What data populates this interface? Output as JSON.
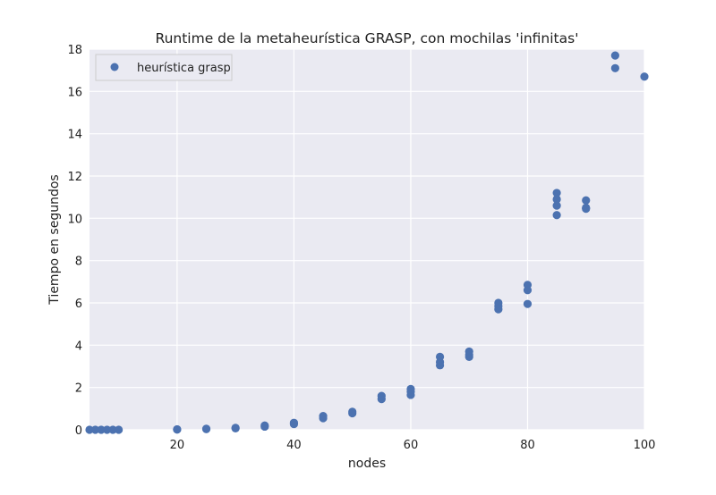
{
  "chart_data": {
    "type": "scatter",
    "title": "Runtime de la metaheurística GRASP, con mochilas 'infinitas'",
    "xlabel": "nodes",
    "ylabel": "Tiempo en segundos",
    "xlim": [
      5,
      100
    ],
    "ylim": [
      0,
      18
    ],
    "grid": true,
    "legend_position": "top-left",
    "xticks": [
      "20",
      "40",
      "60",
      "80",
      "100"
    ],
    "yticks": [
      "0",
      "2",
      "4",
      "6",
      "8",
      "10",
      "12",
      "14",
      "16",
      "18"
    ],
    "series": [
      {
        "name": "heurística grasp",
        "color": "#4c72b0",
        "points": [
          [
            5,
            0
          ],
          [
            6,
            0
          ],
          [
            7,
            0
          ],
          [
            8,
            0
          ],
          [
            9,
            0
          ],
          [
            10,
            0
          ],
          [
            20,
            0.01
          ],
          [
            20,
            0.02
          ],
          [
            25,
            0.03
          ],
          [
            25,
            0.05
          ],
          [
            30,
            0.07
          ],
          [
            30,
            0.09
          ],
          [
            35,
            0.15
          ],
          [
            35,
            0.2
          ],
          [
            40,
            0.27
          ],
          [
            40,
            0.33
          ],
          [
            45,
            0.55
          ],
          [
            45,
            0.65
          ],
          [
            50,
            0.78
          ],
          [
            50,
            0.85
          ],
          [
            55,
            1.45
          ],
          [
            55,
            1.6
          ],
          [
            60,
            1.65
          ],
          [
            60,
            1.8
          ],
          [
            60,
            1.93
          ],
          [
            65,
            3.05
          ],
          [
            65,
            3.2
          ],
          [
            65,
            3.45
          ],
          [
            70,
            3.45
          ],
          [
            70,
            3.55
          ],
          [
            70,
            3.7
          ],
          [
            75,
            5.7
          ],
          [
            75,
            5.85
          ],
          [
            75,
            6.0
          ],
          [
            80,
            5.95
          ],
          [
            80,
            6.6
          ],
          [
            80,
            6.85
          ],
          [
            85,
            10.15
          ],
          [
            85,
            10.6
          ],
          [
            85,
            10.9
          ],
          [
            85,
            11.2
          ],
          [
            90,
            10.45
          ],
          [
            90,
            10.5
          ],
          [
            90,
            10.85
          ],
          [
            95,
            17.1
          ],
          [
            95,
            17.7
          ],
          [
            100,
            16.7
          ]
        ]
      }
    ]
  }
}
